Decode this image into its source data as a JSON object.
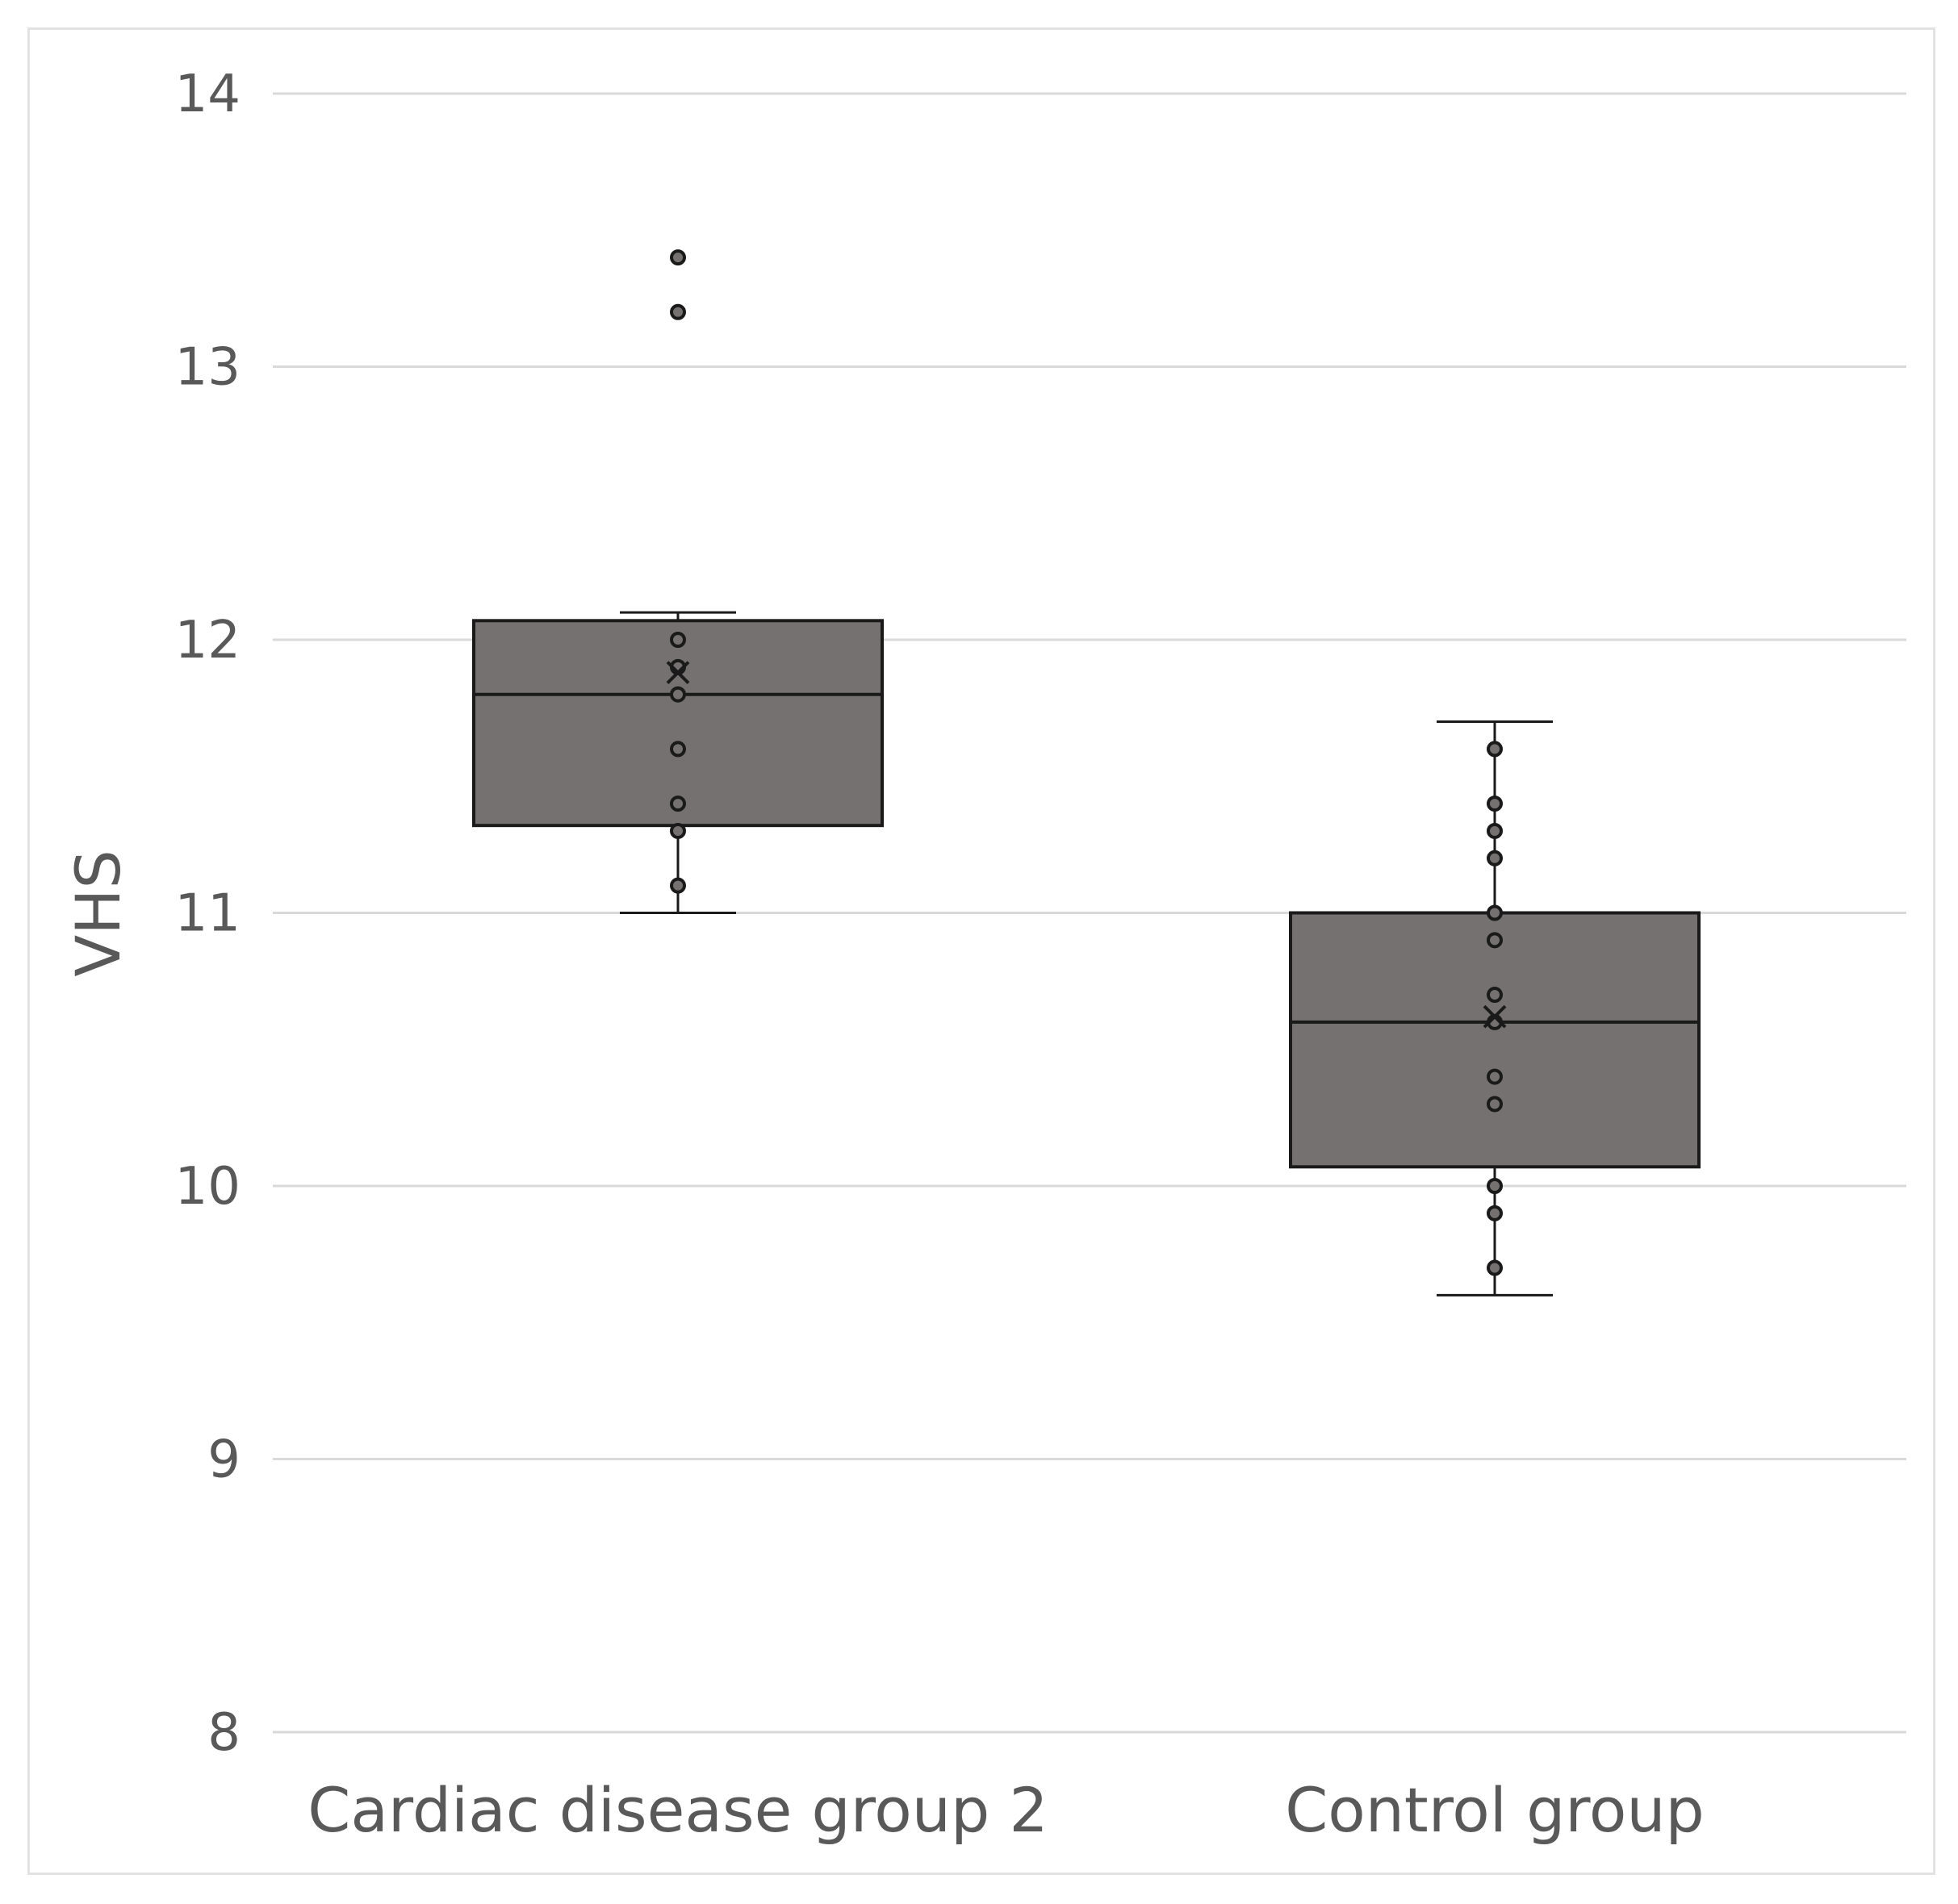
{
  "chart_data": {
    "type": "box",
    "title": "",
    "xlabel": "",
    "ylabel": "VHS",
    "ylim": [
      8,
      14
    ],
    "yticks": [
      8,
      9,
      10,
      11,
      12,
      13,
      14
    ],
    "grid": true,
    "legend": "none",
    "box_color": "#767171",
    "edge_color": "#1a1a1a",
    "grid_color": "#d9d9d9",
    "categories": [
      "Cardiac disease group 2",
      "Control group"
    ],
    "series": [
      {
        "category": "Cardiac disease group 2",
        "q1": 11.32,
        "median": 11.8,
        "q3": 12.07,
        "whisker_low": 11.0,
        "whisker_high": 12.1,
        "mean": 11.88,
        "points": [
          11.1,
          11.3,
          11.4,
          11.6,
          11.8,
          11.9,
          12.0,
          13.2,
          13.4
        ]
      },
      {
        "category": "Control group",
        "q1": 10.07,
        "median": 10.6,
        "q3": 11.0,
        "whisker_low": 9.6,
        "whisker_high": 11.7,
        "mean": 10.62,
        "points": [
          9.7,
          9.9,
          10.0,
          10.3,
          10.4,
          10.6,
          10.7,
          10.9,
          11.0,
          11.2,
          11.3,
          11.4,
          11.6
        ]
      }
    ]
  }
}
